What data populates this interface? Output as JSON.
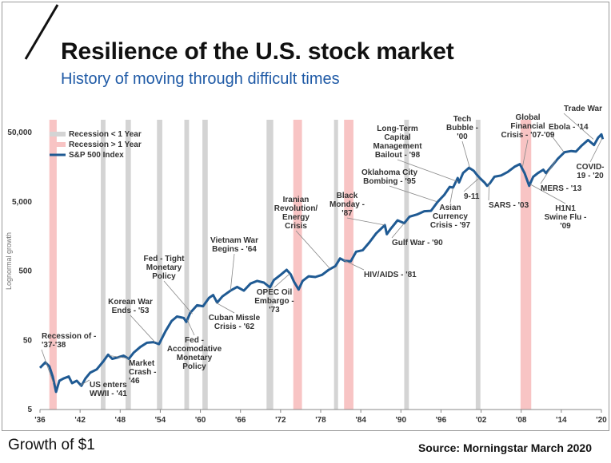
{
  "header": {
    "title": "Resilience of the U.S. stock market",
    "subtitle": "History of moving through difficult times"
  },
  "footer": {
    "left_text": "Growth of $1",
    "source": "Source: Morningstar March 2020"
  },
  "colors": {
    "series": "#1f5a93",
    "recession_short": "#d4d4d4",
    "recession_long": "#f8c4c4",
    "title": "#111111",
    "subtitle": "#1f5aa6"
  },
  "chart_data": {
    "type": "line",
    "title": "Resilience of the U.S. stock market",
    "subtitle": "History of moving through difficult times",
    "ylabel": "Lognormal growth",
    "xlabel": "",
    "y_scale": "log",
    "ylim": [
      5,
      80000
    ],
    "xlim": [
      1936,
      2020
    ],
    "y_ticks": [
      {
        "value": 5,
        "label": "5"
      },
      {
        "value": 50,
        "label": "50"
      },
      {
        "value": 500,
        "label": "500"
      },
      {
        "value": 5000,
        "label": "5,000"
      },
      {
        "value": 50000,
        "label": "50,000"
      }
    ],
    "x_ticks": [
      {
        "value": 1936,
        "label": "'36"
      },
      {
        "value": 1942,
        "label": "'42"
      },
      {
        "value": 1948,
        "label": "'48"
      },
      {
        "value": 1954,
        "label": "'54"
      },
      {
        "value": 1960,
        "label": "'60"
      },
      {
        "value": 1966,
        "label": "'66"
      },
      {
        "value": 1972,
        "label": "'72"
      },
      {
        "value": 1978,
        "label": "'78"
      },
      {
        "value": 1984,
        "label": "'84"
      },
      {
        "value": 1990,
        "label": "'90"
      },
      {
        "value": 1996,
        "label": "'96"
      },
      {
        "value": 2002,
        "label": "'02"
      },
      {
        "value": 2008,
        "label": "'08"
      },
      {
        "value": 2014,
        "label": "'14"
      },
      {
        "value": 2020,
        "label": "'20"
      }
    ],
    "legend": {
      "placement": "top-left",
      "entries": [
        {
          "label": "Recession < 1 Year",
          "kind": "short"
        },
        {
          "label": "Recession > 1 Year",
          "kind": "long"
        },
        {
          "label": "S&P 500 Index",
          "kind": "line"
        }
      ]
    },
    "recessions": [
      {
        "start": 1937.4,
        "end": 1938.5,
        "kind": "long"
      },
      {
        "start": 1945.1,
        "end": 1945.8,
        "kind": "short"
      },
      {
        "start": 1948.8,
        "end": 1949.6,
        "kind": "short"
      },
      {
        "start": 1953.5,
        "end": 1954.3,
        "kind": "short"
      },
      {
        "start": 1957.6,
        "end": 1958.3,
        "kind": "short"
      },
      {
        "start": 1960.3,
        "end": 1961.1,
        "kind": "short"
      },
      {
        "start": 1969.9,
        "end": 1970.9,
        "kind": "short"
      },
      {
        "start": 1973.9,
        "end": 1975.2,
        "kind": "long"
      },
      {
        "start": 1980.0,
        "end": 1980.5,
        "kind": "short"
      },
      {
        "start": 1981.5,
        "end": 1982.9,
        "kind": "long"
      },
      {
        "start": 1990.5,
        "end": 1991.2,
        "kind": "short"
      },
      {
        "start": 2001.2,
        "end": 2001.9,
        "kind": "short"
      },
      {
        "start": 2007.9,
        "end": 2009.5,
        "kind": "long"
      }
    ],
    "series": [
      {
        "name": "S&P 500 Index",
        "points": [
          [
            1936,
            20
          ],
          [
            1936.8,
            24
          ],
          [
            1937.4,
            21
          ],
          [
            1937.9,
            15
          ],
          [
            1938.4,
            9
          ],
          [
            1938.9,
            13
          ],
          [
            1939.5,
            14
          ],
          [
            1940.3,
            15
          ],
          [
            1940.8,
            12
          ],
          [
            1941.5,
            13
          ],
          [
            1942.2,
            11
          ],
          [
            1942.8,
            14
          ],
          [
            1943.5,
            17
          ],
          [
            1944.5,
            19
          ],
          [
            1945.5,
            25
          ],
          [
            1946.2,
            31
          ],
          [
            1946.8,
            27
          ],
          [
            1947.5,
            28
          ],
          [
            1948.5,
            30
          ],
          [
            1949.3,
            27
          ],
          [
            1950.0,
            33
          ],
          [
            1951.0,
            40
          ],
          [
            1952.0,
            46
          ],
          [
            1953.0,
            47
          ],
          [
            1953.8,
            44
          ],
          [
            1954.8,
            68
          ],
          [
            1955.7,
            95
          ],
          [
            1956.5,
            110
          ],
          [
            1957.5,
            105
          ],
          [
            1957.9,
            92
          ],
          [
            1958.5,
            125
          ],
          [
            1959.5,
            160
          ],
          [
            1960.4,
            155
          ],
          [
            1961.3,
            205
          ],
          [
            1961.9,
            225
          ],
          [
            1962.5,
            175
          ],
          [
            1963.3,
            215
          ],
          [
            1964.5,
            260
          ],
          [
            1965.5,
            295
          ],
          [
            1966.5,
            260
          ],
          [
            1967.5,
            330
          ],
          [
            1968.5,
            360
          ],
          [
            1969.5,
            340
          ],
          [
            1970.4,
            290
          ],
          [
            1971.0,
            370
          ],
          [
            1972.0,
            440
          ],
          [
            1972.9,
            520
          ],
          [
            1973.5,
            450
          ],
          [
            1974.0,
            350
          ],
          [
            1974.7,
            270
          ],
          [
            1975.3,
            360
          ],
          [
            1976.2,
            420
          ],
          [
            1977.2,
            410
          ],
          [
            1978.2,
            440
          ],
          [
            1979.2,
            520
          ],
          [
            1980.2,
            590
          ],
          [
            1980.9,
            760
          ],
          [
            1981.6,
            700
          ],
          [
            1982.5,
            690
          ],
          [
            1983.3,
            950
          ],
          [
            1984.3,
            1000
          ],
          [
            1985.3,
            1300
          ],
          [
            1986.3,
            1750
          ],
          [
            1987.6,
            2300
          ],
          [
            1987.9,
            1700
          ],
          [
            1988.5,
            2050
          ],
          [
            1989.5,
            2700
          ],
          [
            1990.5,
            2450
          ],
          [
            1991.3,
            3050
          ],
          [
            1992.5,
            3300
          ],
          [
            1993.5,
            3650
          ],
          [
            1994.5,
            3700
          ],
          [
            1995.5,
            5000
          ],
          [
            1996.5,
            6300
          ],
          [
            1997.3,
            8200
          ],
          [
            1997.8,
            8000
          ],
          [
            1998.5,
            11000
          ],
          [
            1998.7,
            9500
          ],
          [
            1999.3,
            13000
          ],
          [
            2000.2,
            15500
          ],
          [
            2000.9,
            14000
          ],
          [
            2001.3,
            12500
          ],
          [
            2001.8,
            11000
          ],
          [
            2002.5,
            9500
          ],
          [
            2002.9,
            8500
          ],
          [
            2003.3,
            9200
          ],
          [
            2004.0,
            11500
          ],
          [
            2005.0,
            12000
          ],
          [
            2006.0,
            13500
          ],
          [
            2007.0,
            16000
          ],
          [
            2007.8,
            17500
          ],
          [
            2008.5,
            13000
          ],
          [
            2009.2,
            8500
          ],
          [
            2009.8,
            11500
          ],
          [
            2010.5,
            13000
          ],
          [
            2011.3,
            14500
          ],
          [
            2011.7,
            13000
          ],
          [
            2012.5,
            16000
          ],
          [
            2013.5,
            21000
          ],
          [
            2014.5,
            26000
          ],
          [
            2015.5,
            27000
          ],
          [
            2016.2,
            26500
          ],
          [
            2017.0,
            32000
          ],
          [
            2018.0,
            39000
          ],
          [
            2018.9,
            33000
          ],
          [
            2019.5,
            42000
          ],
          [
            2020.0,
            47000
          ],
          [
            2020.2,
            40000
          ]
        ]
      }
    ],
    "annotations": [
      {
        "id": "recession-37-38",
        "lines": [
          "Recession of  -",
          "'37-'38"
        ],
        "x": 1938.0,
        "y": 12
      },
      {
        "id": "us-enters-wwii",
        "lines": [
          "US enters",
          "WWII - '41"
        ],
        "x": 1941.9,
        "y": 11
      },
      {
        "id": "market-crash-46",
        "lines": [
          "Market",
          "Crash -",
          "'46"
        ],
        "x": 1946.4,
        "y": 30
      },
      {
        "id": "korean-war",
        "lines": [
          "Korean War",
          "Ends - '53"
        ],
        "x": 1953.2,
        "y": 47
      },
      {
        "id": "fed-accommodative",
        "lines": [
          "Fed -",
          "Accomodative",
          "Monetary",
          "Policy"
        ],
        "x": 1958.0,
        "y": 100
      },
      {
        "id": "fed-tight",
        "lines": [
          "Fed - Tight",
          "Monetary",
          "Policy"
        ],
        "x": 1958.8,
        "y": 120
      },
      {
        "id": "vietnam-war",
        "lines": [
          "Vietnam War",
          "Begins - '64"
        ],
        "x": 1964.5,
        "y": 260
      },
      {
        "id": "cuban-missile",
        "lines": [
          "Cuban Missle",
          "Crisis - '62"
        ],
        "x": 1962.3,
        "y": 175
      },
      {
        "id": "opec-oil",
        "lines": [
          "OPEC Oil",
          "Embargo -",
          "'73"
        ],
        "x": 1973.4,
        "y": 460
      },
      {
        "id": "iranian-revolution",
        "lines": [
          "Iranian",
          "Revolution/",
          "Energy",
          "Crisis"
        ],
        "x": 1979.4,
        "y": 540
      },
      {
        "id": "hiv-aids",
        "lines": [
          "HIV/AIDS - '81"
        ],
        "x": 1981.4,
        "y": 720
      },
      {
        "id": "black-monday",
        "lines": [
          "Black",
          "Monday -",
          "'87"
        ],
        "x": 1987.6,
        "y": 2300
      },
      {
        "id": "gulf-war",
        "lines": [
          "Gulf War - '90"
        ],
        "x": 1990.5,
        "y": 2450
      },
      {
        "id": "oklahoma-city",
        "lines": [
          "Oklahoma City",
          "Bombing - '95"
        ],
        "x": 1995.4,
        "y": 5000
      },
      {
        "id": "asian-currency",
        "lines": [
          "Asian",
          "Currency",
          "Crisis - '97"
        ],
        "x": 1997.8,
        "y": 8000
      },
      {
        "id": "ltcm",
        "lines": [
          "Long-Term",
          "Capital",
          "Management",
          "Bailout - '98"
        ],
        "x": 1998.6,
        "y": 9700
      },
      {
        "id": "tech-bubble",
        "lines": [
          "Tech",
          "Bubble -",
          "'00"
        ],
        "x": 2000.3,
        "y": 15500
      },
      {
        "id": "nine-eleven",
        "lines": [
          "9-11"
        ],
        "x": 2001.7,
        "y": 11000
      },
      {
        "id": "sars",
        "lines": [
          "SARS - '03"
        ],
        "x": 2003.2,
        "y": 9200
      },
      {
        "id": "gfc",
        "lines": [
          "Global",
          "Financial",
          "Crisis - '07-'09"
        ],
        "x": 2008.2,
        "y": 16000
      },
      {
        "id": "h1n1",
        "lines": [
          "H1N1",
          "Swine Flu -",
          "'09"
        ],
        "x": 2009.3,
        "y": 9000
      },
      {
        "id": "mers",
        "lines": [
          "MERS - '13"
        ],
        "x": 2013.2,
        "y": 20000
      },
      {
        "id": "ebola",
        "lines": [
          "Ebola - '14"
        ],
        "x": 2014.4,
        "y": 26000
      },
      {
        "id": "trade-war",
        "lines": [
          "Trade War"
        ],
        "x": 2018.8,
        "y": 40000
      },
      {
        "id": "covid-19",
        "lines": [
          "COVID-",
          "19 - '20"
        ],
        "x": 2020.1,
        "y": 41000
      }
    ]
  }
}
